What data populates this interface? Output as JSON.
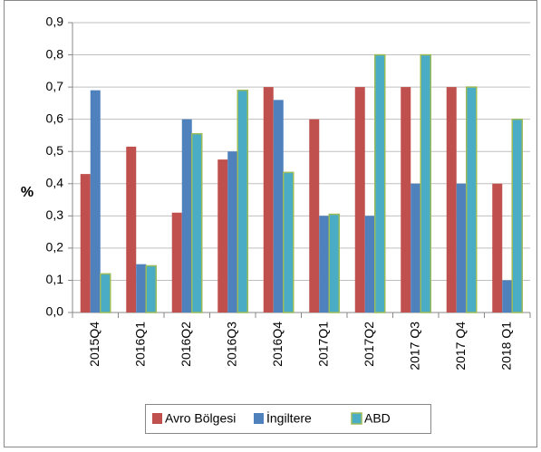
{
  "chart_data": {
    "type": "bar",
    "y_label": "%",
    "categories": [
      "2015Q4",
      "2016Q1",
      "2016Q2",
      "2016Q3",
      "2016Q4",
      "2017Q1",
      "2017Q2",
      "2017 Q3",
      "2017 Q4",
      "2018 Q1"
    ],
    "series": [
      {
        "name": "Avro Bölgesi",
        "color": "#c0504d",
        "values": [
          0.43,
          0.515,
          0.31,
          0.475,
          0.7,
          0.6,
          0.7,
          0.7,
          0.7,
          0.4
        ]
      },
      {
        "name": "İngiltere",
        "color": "#4f81bd",
        "values": [
          0.69,
          0.15,
          0.6,
          0.5,
          0.66,
          0.3,
          0.3,
          0.4,
          0.4,
          0.1
        ]
      },
      {
        "name": "ABD",
        "color": "#4bacc6",
        "values": [
          0.12,
          0.145,
          0.555,
          0.69,
          0.435,
          0.305,
          0.8,
          0.8,
          0.7,
          0.6
        ]
      }
    ],
    "ylim": [
      0,
      0.9
    ],
    "yticks": [
      {
        "value": 0,
        "label": "0,0"
      },
      {
        "value": 0.1,
        "label": "0,1"
      },
      {
        "value": 0.2,
        "label": "0,2"
      },
      {
        "value": 0.3,
        "label": "0,3"
      },
      {
        "value": 0.4,
        "label": "0,4"
      },
      {
        "value": 0.5,
        "label": "0,5"
      },
      {
        "value": 0.6,
        "label": "0,6"
      },
      {
        "value": 0.7,
        "label": "0,7"
      },
      {
        "value": 0.8,
        "label": "0,8"
      },
      {
        "value": 0.9,
        "label": "0,9"
      }
    ],
    "grid": true
  }
}
